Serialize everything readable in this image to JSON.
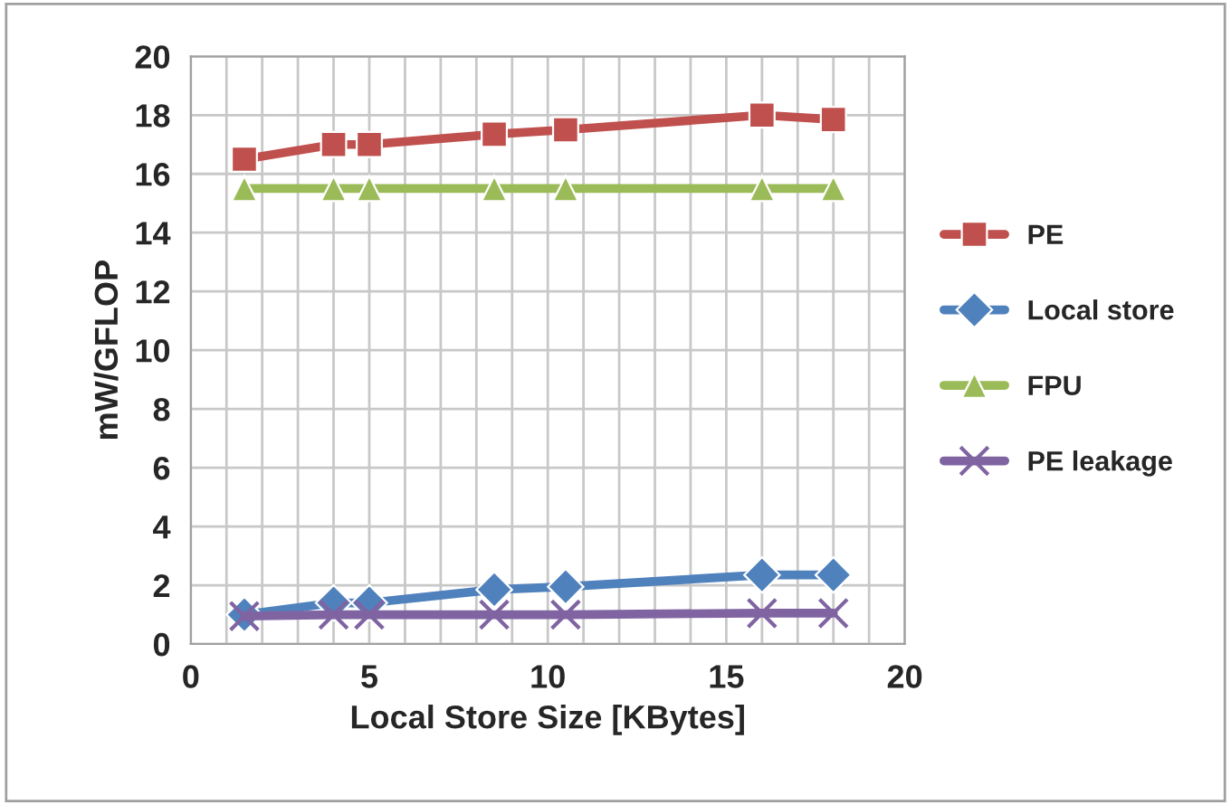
{
  "chart_data": {
    "type": "line",
    "xlabel": "Local Store Size [KBytes]",
    "ylabel": "mW/GFLOP",
    "x": [
      1.5,
      4,
      5,
      8.5,
      10.5,
      16,
      18
    ],
    "series": [
      {
        "name": "PE",
        "color": "#c0504d",
        "marker": "square",
        "values": [
          16.5,
          17.0,
          17.0,
          17.35,
          17.5,
          18.0,
          17.85
        ]
      },
      {
        "name": "Local store",
        "color": "#4f81bd",
        "marker": "diamond",
        "values": [
          1.0,
          1.4,
          1.4,
          1.85,
          1.95,
          2.35,
          2.35
        ]
      },
      {
        "name": "FPU",
        "color": "#9bbb59",
        "marker": "triangle",
        "values": [
          15.5,
          15.5,
          15.5,
          15.5,
          15.5,
          15.5,
          15.5
        ]
      },
      {
        "name": "PE leakage",
        "color": "#8064a2",
        "marker": "cross",
        "values": [
          0.95,
          1.0,
          1.0,
          1.0,
          1.0,
          1.05,
          1.05
        ]
      }
    ],
    "xlim": [
      0,
      20
    ],
    "ylim": [
      0,
      20
    ],
    "xticks": [
      0,
      {
        "value": 1,
        "label": null
      },
      {
        "value": 2,
        "label": null
      },
      {
        "value": 3,
        "label": null
      },
      {
        "value": 4,
        "label": null
      },
      5,
      {
        "value": 6,
        "label": null
      },
      {
        "value": 7,
        "label": null
      },
      {
        "value": 8,
        "label": null
      },
      {
        "value": 9,
        "label": null
      },
      10,
      {
        "value": 11,
        "label": null
      },
      {
        "value": 12,
        "label": null
      },
      {
        "value": 13,
        "label": null
      },
      {
        "value": 14,
        "label": null
      },
      15,
      {
        "value": 16,
        "label": null
      },
      {
        "value": 17,
        "label": null
      },
      {
        "value": 18,
        "label": null
      },
      {
        "value": 19,
        "label": null
      },
      20
    ],
    "yticks": [
      0,
      2,
      4,
      6,
      8,
      10,
      12,
      14,
      16,
      18,
      20
    ],
    "grid": true,
    "legend": "right",
    "line_style": "solid"
  }
}
